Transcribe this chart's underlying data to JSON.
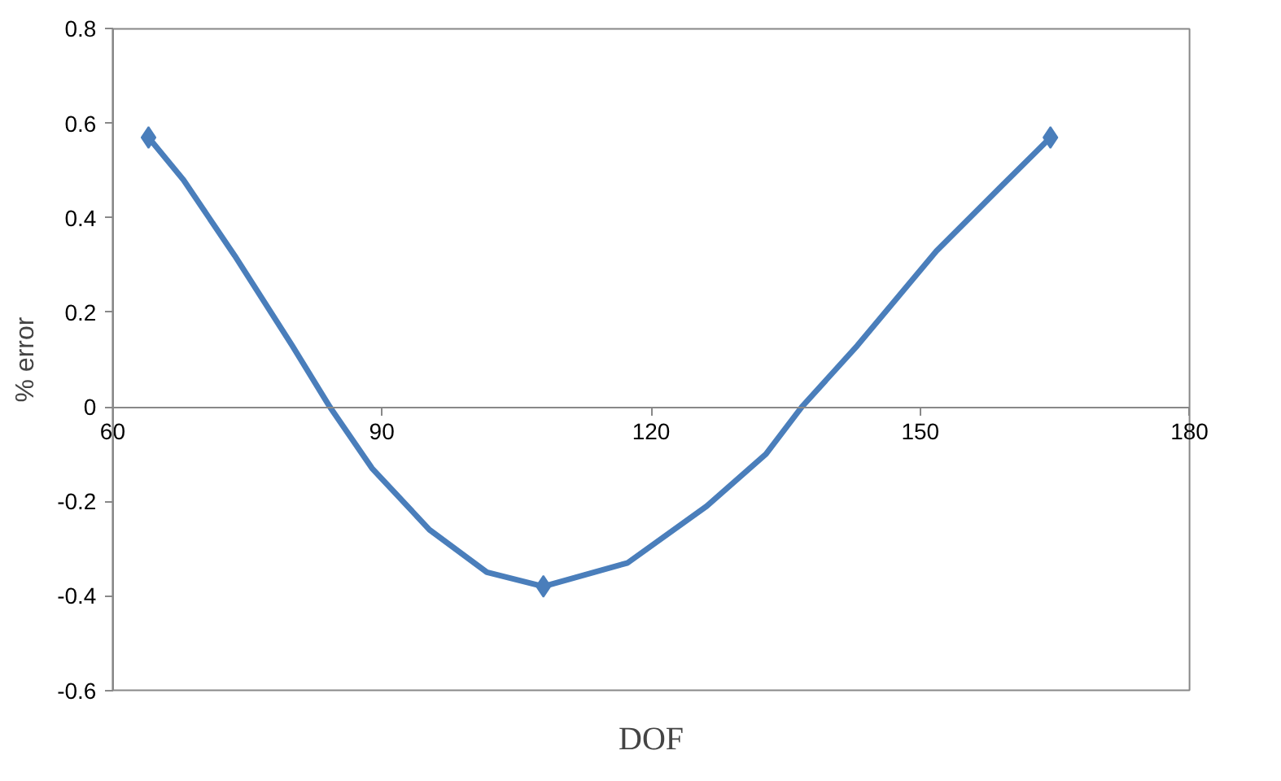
{
  "chart_data": {
    "type": "line",
    "xlabel": "DOF",
    "ylabel": "% error",
    "x": [
      64,
      67.9,
      73.6,
      80,
      84.2,
      88.9,
      95.3,
      101.7,
      108,
      117.4,
      126.2,
      132.8,
      136.8,
      143,
      151.8,
      159.2,
      164.5
    ],
    "series": [
      {
        "color": "#4a7ebb",
        "values": [
          0.57,
          0.48,
          0.32,
          0.13,
          0,
          -0.13,
          -0.26,
          -0.35,
          -0.38,
          -0.33,
          -0.21,
          -0.1,
          0,
          0.13,
          0.33,
          0.47,
          0.57
        ],
        "marker": "none"
      },
      {
        "type": "scatter",
        "color": "#4a7ebb",
        "x": [
          64,
          108,
          164.5
        ],
        "values": [
          0.57,
          -0.38,
          0.57
        ],
        "marker": "diamond"
      }
    ],
    "xlim": [
      60,
      180
    ],
    "xticks": [
      60,
      90,
      120,
      150,
      180
    ],
    "ylim": [
      -0.6,
      0.8
    ],
    "yticks": [
      -0.6,
      -0.4,
      -0.2,
      0,
      0.2,
      0.4,
      0.6,
      0.8
    ],
    "grid": false,
    "line_style": "solid"
  }
}
